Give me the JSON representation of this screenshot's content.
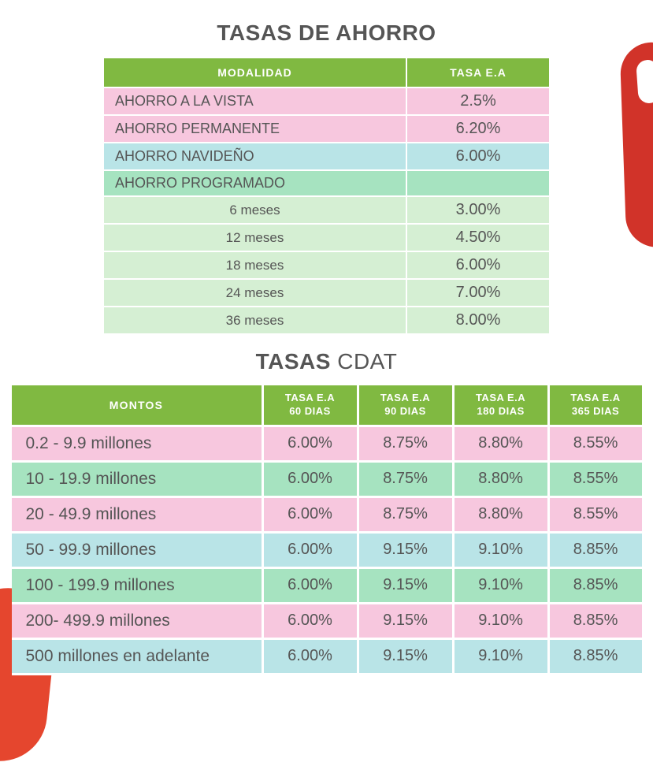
{
  "titles": {
    "ahorro": "TASAS DE AHORRO",
    "cdat_bold": "TASAS",
    "cdat_light": " CDAT"
  },
  "colors": {
    "header_bg": "#80b941",
    "header_text": "#ffffff",
    "text": "#555555",
    "pink": "#f7c7de",
    "blue": "#b9e4e7",
    "green": "#d5efd3",
    "mint": "#a6e3c0",
    "accent_red": "#e5462e",
    "accent_red_dark": "#d13329"
  },
  "table1": {
    "headers": {
      "c1": "MODALIDAD",
      "c2": "TASA E.A"
    },
    "rows": [
      {
        "label": " AHORRO A LA VISTA",
        "rate": "2.5%",
        "color": "pink",
        "sub": false
      },
      {
        "label": " AHORRO PERMANENTE",
        "rate": "6.20%",
        "color": "pink",
        "sub": false
      },
      {
        "label": " AHORRO NAVIDEÑO",
        "rate": "6.00%",
        "color": "blue",
        "sub": false
      },
      {
        "label": "AHORRO PROGRAMADO",
        "rate": "",
        "color": "mint",
        "sub": false
      },
      {
        "label": "6 meses",
        "rate": "3.00%",
        "color": "green",
        "sub": true
      },
      {
        "label": "12 meses",
        "rate": "4.50%",
        "color": "green",
        "sub": true
      },
      {
        "label": "18 meses",
        "rate": "6.00%",
        "color": "green",
        "sub": true
      },
      {
        "label": "24 meses",
        "rate": "7.00%",
        "color": "green",
        "sub": true
      },
      {
        "label": "36 meses",
        "rate": "8.00%",
        "color": "green",
        "sub": true
      }
    ]
  },
  "table2": {
    "headers": {
      "c1": "MONTOS",
      "c2a": "TASA E.A",
      "c2b": "60 DIAS",
      "c3a": "TASA E.A",
      "c3b": "90 DIAS",
      "c4a": "TASA E.A",
      "c4b": "180 DIAS",
      "c5a": "TASA E.A",
      "c5b": "365 DIAS"
    },
    "rows": [
      {
        "label": "0.2 - 9.9 millones",
        "d60": "6.00%",
        "d90": "8.75%",
        "d180": "8.80%",
        "d365": "8.55%",
        "color": "pink"
      },
      {
        "label": "10 - 19.9 millones",
        "d60": "6.00%",
        "d90": "8.75%",
        "d180": "8.80%",
        "d365": "8.55%",
        "color": "mint"
      },
      {
        "label": "20 - 49.9 millones",
        "d60": "6.00%",
        "d90": "8.75%",
        "d180": "8.80%",
        "d365": "8.55%",
        "color": "pink"
      },
      {
        "label": "50 - 99.9 millones",
        "d60": "6.00%",
        "d90": "9.15%",
        "d180": "9.10%",
        "d365": "8.85%",
        "color": "blue"
      },
      {
        "label": "100 - 199.9 millones",
        "d60": "6.00%",
        "d90": "9.15%",
        "d180": "9.10%",
        "d365": "8.85%",
        "color": "mint"
      },
      {
        "label": "200- 499.9 millones",
        "d60": "6.00%",
        "d90": "9.15%",
        "d180": "9.10%",
        "d365": "8.85%",
        "color": "pink"
      },
      {
        "label": "500 millones en adelante",
        "d60": "6.00%",
        "d90": "9.15%",
        "d180": "9.10%",
        "d365": "8.85%",
        "color": "blue"
      }
    ]
  }
}
